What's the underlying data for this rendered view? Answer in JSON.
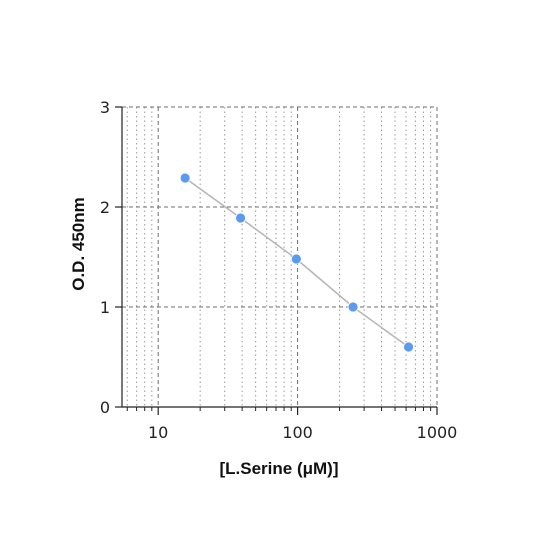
{
  "chart_data": {
    "type": "scatter",
    "title": "",
    "xlabel": "[L.Serine (μM)]",
    "ylabel": "O.D. 450nm",
    "x_scale": "log",
    "xlim": [
      5.5,
      1000
    ],
    "ylim": [
      0,
      3
    ],
    "x_ticks": [
      10,
      100,
      1000
    ],
    "x_tick_labels": [
      "10",
      "100",
      "1000"
    ],
    "y_ticks": [
      0,
      1,
      2,
      3
    ],
    "y_tick_labels": [
      "0",
      "1",
      "2",
      "3"
    ],
    "grid": true,
    "legend": "none",
    "series": [
      {
        "x": [
          15.6,
          39,
          98,
          250,
          625
        ],
        "y": [
          2.29,
          1.89,
          1.48,
          1.0,
          0.6
        ],
        "marker_color": "#5b9bef",
        "line_color": "#b5b5b5"
      }
    ]
  }
}
